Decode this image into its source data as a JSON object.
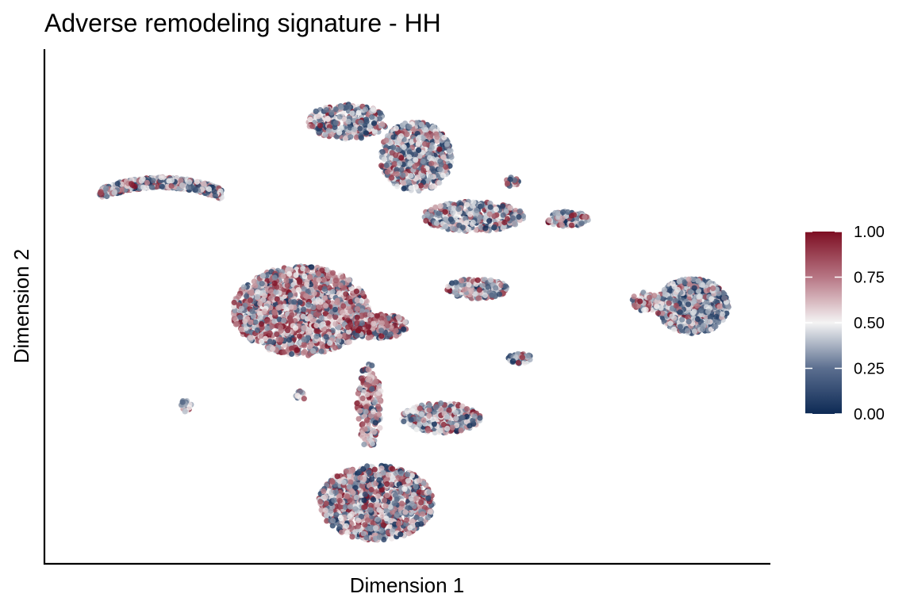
{
  "chart_data": {
    "type": "scatter",
    "title": "Adverse remodeling signature - HH",
    "xlabel": "Dimension 1",
    "ylabel": "Dimension 2",
    "x_ticks": "none",
    "y_ticks": "none",
    "grid": false,
    "legend_position": "right",
    "color_scale": {
      "min": 0.0,
      "max": 1.0,
      "low_color": "#0d2a55",
      "mid_color": "#f4f4f4",
      "high_color": "#7d0e22",
      "ticks": [
        0.0,
        0.25,
        0.5,
        0.75,
        1.0
      ],
      "tick_labels": [
        "0.00",
        "0.25",
        "0.50",
        "0.75",
        "1.00"
      ]
    },
    "xlim": [
      0,
      100
    ],
    "ylim": [
      0,
      100
    ],
    "clusters": [
      {
        "cx": 15.5,
        "cy": 73.5,
        "rx": 8.5,
        "ry": 3.8,
        "shape": "crescent",
        "n": 700,
        "mean_score": 0.3
      },
      {
        "cx": 41.5,
        "cy": 87.0,
        "rx": 5.5,
        "ry": 3.5,
        "shape": "ellipse",
        "n": 320,
        "mean_score": 0.3
      },
      {
        "cx": 51.0,
        "cy": 80.0,
        "rx": 5.0,
        "ry": 7.0,
        "shape": "ellipse",
        "n": 620,
        "mean_score": 0.3
      },
      {
        "cx": 59.0,
        "cy": 68.0,
        "rx": 7.0,
        "ry": 3.0,
        "shape": "ellipse",
        "n": 340,
        "mean_score": 0.3
      },
      {
        "cx": 35.0,
        "cy": 49.0,
        "rx": 9.5,
        "ry": 9.0,
        "shape": "ellipse",
        "n": 1600,
        "mean_score": 0.62
      },
      {
        "cx": 45.5,
        "cy": 46.0,
        "rx": 4.5,
        "ry": 2.5,
        "shape": "ellipse",
        "n": 260,
        "mean_score": 0.62
      },
      {
        "cx": 44.5,
        "cy": 30.0,
        "rx": 1.8,
        "ry": 8.5,
        "shape": "ellipse",
        "n": 180,
        "mean_score": 0.65
      },
      {
        "cx": 54.5,
        "cy": 27.5,
        "rx": 5.5,
        "ry": 3.0,
        "shape": "ellipse",
        "n": 380,
        "mean_score": 0.32
      },
      {
        "cx": 45.5,
        "cy": 10.5,
        "rx": 8.0,
        "ry": 7.5,
        "shape": "ellipse",
        "n": 1200,
        "mean_score": 0.45
      },
      {
        "cx": 59.5,
        "cy": 53.5,
        "rx": 4.2,
        "ry": 2.0,
        "shape": "ellipse",
        "n": 240,
        "mean_score": 0.3
      },
      {
        "cx": 65.5,
        "cy": 39.5,
        "rx": 1.6,
        "ry": 1.0,
        "shape": "ellipse",
        "n": 60,
        "mean_score": 0.2
      },
      {
        "cx": 89.5,
        "cy": 50.0,
        "rx": 5.0,
        "ry": 5.5,
        "shape": "ellipse",
        "n": 900,
        "mean_score": 0.22
      },
      {
        "cx": 83.0,
        "cy": 51.0,
        "rx": 2.0,
        "ry": 2.0,
        "shape": "ellipse",
        "n": 70,
        "mean_score": 0.4
      },
      {
        "cx": 19.0,
        "cy": 30.0,
        "rx": 0.8,
        "ry": 1.2,
        "shape": "ellipse",
        "n": 18,
        "mean_score": 0.15
      },
      {
        "cx": 35.0,
        "cy": 32.0,
        "rx": 0.7,
        "ry": 0.9,
        "shape": "ellipse",
        "n": 14,
        "mean_score": 0.3
      },
      {
        "cx": 64.5,
        "cy": 75.0,
        "rx": 0.9,
        "ry": 1.0,
        "shape": "ellipse",
        "n": 16,
        "mean_score": 0.4
      },
      {
        "cx": 72.0,
        "cy": 67.5,
        "rx": 3.0,
        "ry": 1.5,
        "shape": "ellipse",
        "n": 90,
        "mean_score": 0.35
      }
    ]
  }
}
